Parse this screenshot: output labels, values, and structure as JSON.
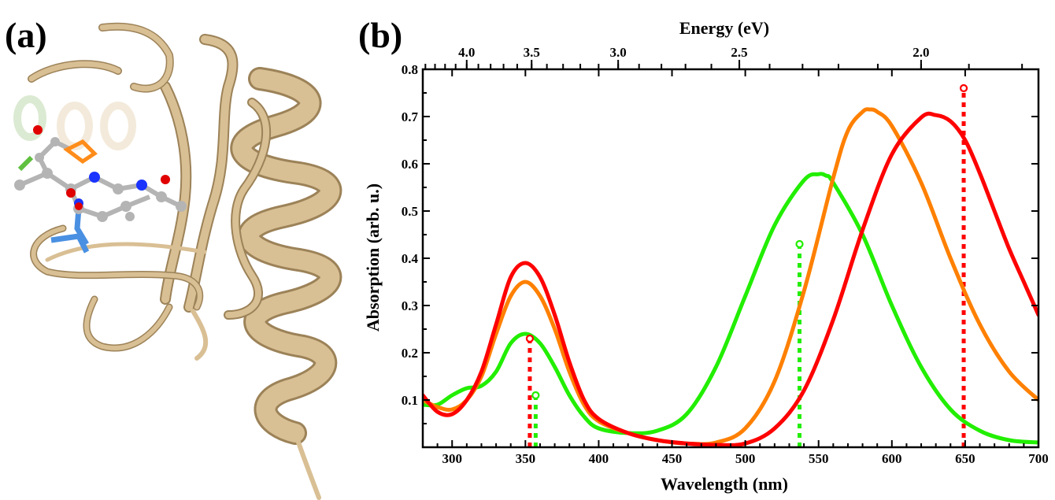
{
  "panels": {
    "a_label": "(a)",
    "b_label": "(b)"
  },
  "colors": {
    "red": "#ff0000",
    "orange": "#ff8000",
    "green": "#22ee00",
    "protein_ribbon": "#d9bf94",
    "chromophore_carbon": "#b4b4b4",
    "oxygen": "#e00000",
    "nitrogen": "#1a33ff",
    "his_sidechain": "#ff8c1a",
    "cys_sidechain": "#60c040",
    "backbone_highlight": "#4a90e2"
  },
  "chart_data": {
    "type": "line",
    "title": "",
    "xlabel": "Wavelength (nm)",
    "ylabel": "Absorption (arb. u.)",
    "top_xlabel": "Energy (eV)",
    "xlim": [
      280,
      700
    ],
    "ylim": [
      0,
      0.8
    ],
    "x_ticks": [
      300,
      350,
      400,
      450,
      500,
      550,
      600,
      650,
      700
    ],
    "y_ticks": [
      0.1,
      0.2,
      0.3,
      0.4,
      0.5,
      0.6,
      0.7,
      0.8
    ],
    "top_ticks_labeled": [
      4.0,
      3.5,
      3.0,
      2.5,
      2.0
    ],
    "grid": false,
    "legend": "none",
    "series": [
      {
        "color": "red",
        "x": [
          280,
          290,
          300,
          310,
          320,
          330,
          340,
          350,
          360,
          370,
          380,
          390,
          400,
          420,
          440,
          460,
          480,
          500,
          520,
          540,
          560,
          580,
          600,
          620,
          630,
          640,
          650,
          660,
          670,
          680,
          690,
          700
        ],
        "y": [
          0.11,
          0.075,
          0.07,
          0.1,
          0.16,
          0.26,
          0.36,
          0.39,
          0.36,
          0.28,
          0.18,
          0.1,
          0.06,
          0.03,
          0.015,
          0.008,
          0.005,
          0.008,
          0.04,
          0.12,
          0.27,
          0.46,
          0.62,
          0.698,
          0.703,
          0.69,
          0.65,
          0.58,
          0.5,
          0.42,
          0.35,
          0.28
        ]
      },
      {
        "color": "orange",
        "x": [
          280,
          290,
          300,
          310,
          320,
          330,
          340,
          350,
          360,
          370,
          380,
          390,
          400,
          420,
          440,
          460,
          480,
          500,
          520,
          540,
          560,
          570,
          580,
          585,
          590,
          600,
          620,
          640,
          660,
          680,
          700
        ],
        "y": [
          0.1,
          0.085,
          0.08,
          0.1,
          0.15,
          0.24,
          0.32,
          0.35,
          0.32,
          0.25,
          0.16,
          0.09,
          0.055,
          0.03,
          0.015,
          0.008,
          0.01,
          0.04,
          0.14,
          0.33,
          0.57,
          0.67,
          0.71,
          0.715,
          0.71,
          0.68,
          0.56,
          0.4,
          0.26,
          0.16,
          0.1
        ]
      },
      {
        "color": "green",
        "x": [
          280,
          290,
          300,
          310,
          320,
          330,
          340,
          350,
          360,
          370,
          380,
          390,
          400,
          420,
          440,
          460,
          480,
          500,
          520,
          540,
          550,
          555,
          560,
          580,
          600,
          620,
          640,
          660,
          680,
          700
        ],
        "y": [
          0.09,
          0.09,
          0.11,
          0.125,
          0.13,
          0.16,
          0.22,
          0.24,
          0.22,
          0.17,
          0.11,
          0.065,
          0.04,
          0.03,
          0.035,
          0.07,
          0.17,
          0.32,
          0.47,
          0.565,
          0.578,
          0.575,
          0.56,
          0.45,
          0.3,
          0.17,
          0.08,
          0.035,
          0.015,
          0.01
        ]
      }
    ],
    "sticks": [
      {
        "color": "red",
        "x": 353,
        "y": 0.23
      },
      {
        "color": "green",
        "x": 357,
        "y": 0.11
      },
      {
        "color": "green",
        "x": 537,
        "y": 0.43
      },
      {
        "color": "red",
        "x": 649,
        "y": 0.76
      }
    ]
  }
}
